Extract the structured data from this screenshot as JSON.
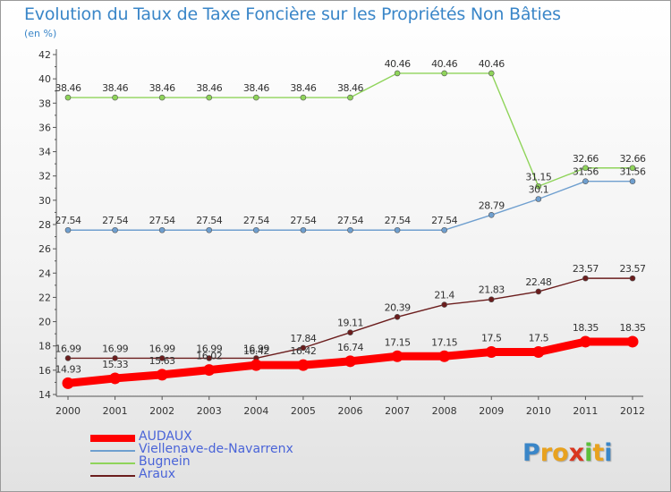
{
  "title": "Evolution du Taux de Taxe Foncière sur les Propriétés Non Bâties",
  "subtitle": "(en %)",
  "logo_text": "Proxiti",
  "colors": {
    "title": "#3a86c8",
    "legend_text": "#4a64d8",
    "AUDAUX": "#ff0000",
    "Viellenave-de-Navarrenx": "#6f9fcf",
    "Bugnein": "#8fd45a",
    "Araux": "#6b1d1d"
  },
  "chart_data": {
    "type": "line",
    "x": [
      "2000",
      "2001",
      "2002",
      "2003",
      "2004",
      "2005",
      "2006",
      "2007",
      "2008",
      "2009",
      "2010",
      "2011",
      "2012"
    ],
    "ylim": [
      14,
      42
    ],
    "yticks": [
      14,
      16,
      18,
      20,
      22,
      24,
      26,
      28,
      30,
      32,
      34,
      36,
      38,
      40,
      42
    ],
    "grid": false,
    "legend_position": "bottom-left",
    "series": [
      {
        "name": "AUDAUX",
        "color": "#ff0000",
        "width": "thick",
        "values": [
          14.93,
          15.33,
          15.63,
          16.02,
          16.42,
          16.42,
          16.74,
          17.15,
          17.15,
          17.5,
          17.5,
          18.35,
          18.35
        ]
      },
      {
        "name": "Viellenave-de-Navarrenx",
        "color": "#6f9fcf",
        "width": "thin",
        "values": [
          27.54,
          27.54,
          27.54,
          27.54,
          27.54,
          27.54,
          27.54,
          27.54,
          27.54,
          28.79,
          30.1,
          31.56,
          31.56
        ]
      },
      {
        "name": "Bugnein",
        "color": "#8fd45a",
        "width": "thin",
        "values": [
          38.46,
          38.46,
          38.46,
          38.46,
          38.46,
          38.46,
          38.46,
          40.46,
          40.46,
          40.46,
          31.15,
          32.66,
          32.66
        ]
      },
      {
        "name": "Araux",
        "color": "#6b1d1d",
        "width": "thin",
        "values": [
          16.99,
          16.99,
          16.99,
          16.99,
          16.99,
          17.84,
          19.11,
          20.39,
          21.4,
          21.83,
          22.48,
          23.57,
          23.57
        ]
      }
    ]
  }
}
